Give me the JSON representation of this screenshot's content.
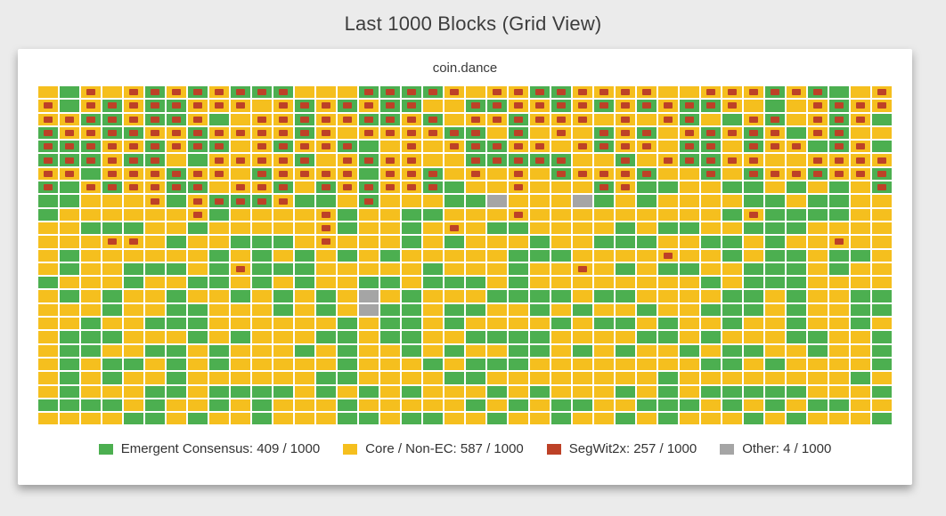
{
  "header": {
    "title": "Last 1000 Blocks (Grid View)"
  },
  "chart_data": {
    "type": "heatmap",
    "title": "Last 1000 Blocks (Grid View)",
    "subtitle": "coin.dance",
    "columns": 40,
    "rows_count": 25,
    "total_blocks": 1000,
    "cell_encoding": {
      "G": "Emergent Consensus",
      "g": "Emergent Consensus + SegWit2x signal",
      "Y": "Core / Non-EC",
      "y": "Core / Non-EC + SegWit2x signal",
      "O": "Other"
    },
    "grid_rows": [
      "YGyYygygygggYYYggggyYyyggyyyyYYyyygygGYy",
      "yGygyggyyyYygygyggYYggyygygygyggyYGYygyy",
      "yyggyggyGYyygyyggygYyygyyyYyYygYGygYygyG",
      "gyyggyygyyyygyYyyyyggYgYyYgygYygygyGygYY",
      "gggyygyggYygyygGYyYyggyyYygyyYggYgyyGgyG",
      "gggyggYGyyyygYygyyYYgggggYYgYyggyyYYyyyy",
      "yyGyyygyyYgyyyyGyygYyYyYgyyygYYgYgyygyyg",
      "gGygyyggYyygYgygyygGYYyYYYgyGGYYGGYGYGYg",
      "GGYYYyGygggyGGYgYYYGGOYYYOGYGYYYYGGYGGYY",
      "GYYYYYYyGYYYYyGYYGGYYYyYYYYYYYYYGyGGGGYY",
      "YYGGGYYGYYYYYyGYYGYyYGGYYYYGYGGYYGGGYYYY",
      "YYYyyYGYYGGGYyYYYGYGYYYGYYGGGYYGGYGYYyYY",
      "YGYYYYYYGYGYGYGYGYYYYYGGGYYYYyYYGYGGYGGY",
      "YGYYGGGYGyGGGYYYYYGYYYGYYyYGYGGYYGGGYGYY",
      "GYYYGYYGGYGYGYYGGYGGGYGYYYYYYYYGYGGGYYYY",
      "YGYGYYGYYGYGYGYOYGYYYGGGGYGGYYYYGGYGYYGG",
      "YYYGYYGGYYYGYGYOGGYGGYYGYGYYGYYGGGYGYYGG",
      "YYGYYGGGYYYYYYGYGGYGYYYYGYGGYGYYGYYGYYGY",
      "YGGGYYYGYGYYYGGYGGYYGGGGYYYYGGYGYYYGGYYG",
      "YGGYYGGYGYYYGYGYYGYGYYGGYGYGYYGYGGYYGYYG",
      "YGYGGYGYGYYYYYGYYYGYGGGYYYYYYYYGGYGYYYYG",
      "YGYGYYGYYYYYYGGYYYYGGYYYYYYYYGYYYYYYYYGY",
      "YGYYYGGYGGGGYGYGYGYYYGYGYYYGYGYGGGGGYYYG",
      "GGGGYGYYGYGYYYGYYYYYGYGYGGYYGGGYGYGYGGYY",
      "YYYYGGYGYYGYYYGGYGGYYGYYGYYGYGYYYGYGYYYG"
    ],
    "legend": [
      {
        "name": "Emergent Consensus",
        "count": 409,
        "total": 1000,
        "display": "Emergent Consensus: 409 / 1000",
        "color": "#4caf50"
      },
      {
        "name": "Core / Non-EC",
        "count": 587,
        "total": 1000,
        "display": "Core / Non-EC: 587 / 1000",
        "color": "#f5bf1e"
      },
      {
        "name": "SegWit2x",
        "count": 257,
        "total": 1000,
        "display": "SegWit2x: 257 / 1000",
        "color": "#bd4127"
      },
      {
        "name": "Other",
        "count": 4,
        "total": 1000,
        "display": "Other: 4 / 1000",
        "color": "#a5a5a5"
      }
    ],
    "colors": {
      "emergent_consensus": "#4caf50",
      "core": "#f5bf1e",
      "segwit2x_marker": "#bd4127",
      "other": "#a5a5a5",
      "page_background": "#ebebeb",
      "card_background": "#ffffff"
    }
  }
}
